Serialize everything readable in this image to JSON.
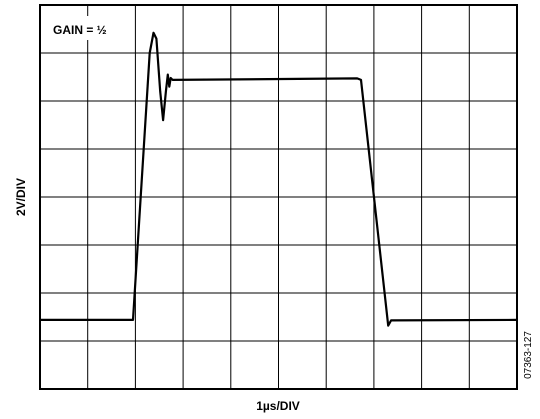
{
  "chart_data": {
    "type": "line",
    "annotation": "GAIN = ½",
    "xlabel": "1µs/DIV",
    "ylabel": "2V/DIV",
    "figure_id": "07363-127",
    "grid": true,
    "grid_divisions": {
      "x": 10,
      "y": 8
    },
    "xlim": [
      0,
      10
    ],
    "ylim": [
      -4,
      4
    ],
    "series": [
      {
        "points": [
          [
            0.0,
            -2.56
          ],
          [
            1.95,
            -2.56
          ],
          [
            2.3,
            3.0
          ],
          [
            2.38,
            3.42
          ],
          [
            2.44,
            3.3
          ],
          [
            2.52,
            2.2
          ],
          [
            2.58,
            1.6
          ],
          [
            2.64,
            2.2
          ],
          [
            2.68,
            2.55
          ],
          [
            2.71,
            2.3
          ],
          [
            2.74,
            2.48
          ],
          [
            2.78,
            2.44
          ],
          [
            6.65,
            2.47
          ],
          [
            6.73,
            2.44
          ],
          [
            7.3,
            -2.68
          ],
          [
            7.36,
            -2.57
          ],
          [
            10.0,
            -2.56
          ]
        ]
      }
    ]
  },
  "colors": {
    "trace": "#000000",
    "grid": "#000000",
    "background": "#ffffff"
  }
}
